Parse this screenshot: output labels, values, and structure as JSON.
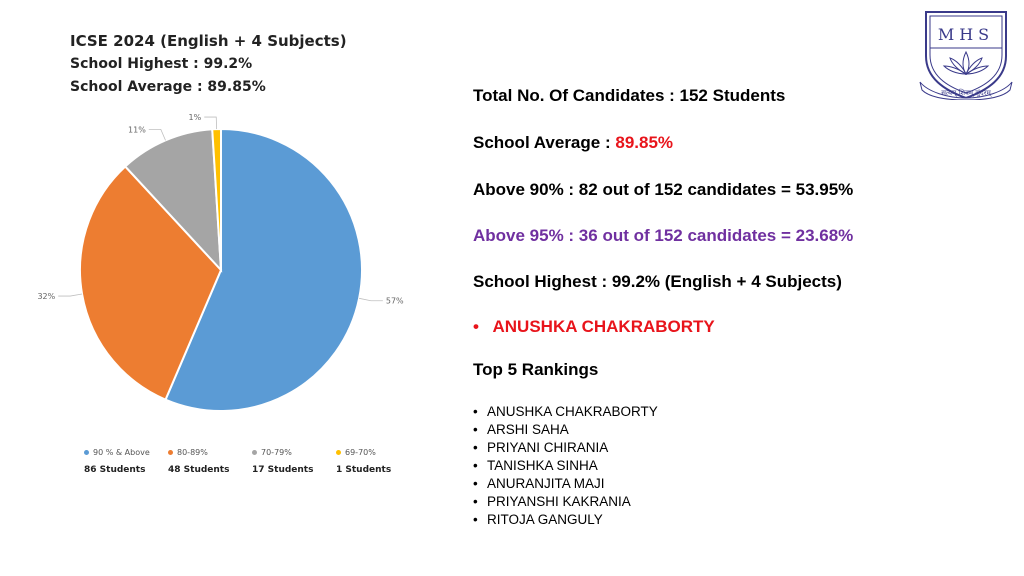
{
  "chart_header": {
    "title": "ICSE 2024 (English + 4 Subjects)",
    "highest": "School Highest : 99.2%",
    "average": "School Average : 89.85%"
  },
  "chart_data": {
    "type": "pie",
    "categories": [
      "90 % & Above",
      "80-89%",
      "70-79%",
      "69-70%"
    ],
    "values": [
      57,
      32,
      11,
      1
    ],
    "value_labels": [
      "57%",
      "32%",
      "11%",
      "1%"
    ],
    "counts": [
      "86 Students",
      "48 Students",
      "17 Students",
      "1 Students"
    ],
    "colors": [
      "#5b9bd5",
      "#ed7d31",
      "#a5a5a5",
      "#ffc000"
    ],
    "legend_position": "bottom"
  },
  "stats": {
    "total_label": "Total No. Of Candidates  :  152 Students",
    "average_label": "School Average :",
    "average_value": "89.85%",
    "above90": "Above 90%  :  82 out of 152 candidates = 53.95%",
    "above95": "Above 95%  :   36 out of 152 candidates =  23.68%",
    "highest": "School Highest  :  99.2%  (English + 4 Subjects)",
    "topper_bullet": "•",
    "topper": "ANUSHKA CHAKRABORTY",
    "rankings_heading": "Top 5 Rankings"
  },
  "rankings": [
    "ANUSHKA CHAKRABORTY",
    "ARSHI SAHA",
    "PRIYANI CHIRANIA",
    "TANISHKA SINHA",
    "ANURANJITA MAJI",
    "PRIYANSHI KAKRANIA",
    "RITOJA GANGULY"
  ],
  "logo": {
    "letters": "MHS",
    "motto": "सत्यम् शिवम् सुंदरम्",
    "icon": "lotus-crest-icon"
  },
  "colors": {
    "accent_red": "#e8141b",
    "accent_purple": "#7030a0"
  }
}
